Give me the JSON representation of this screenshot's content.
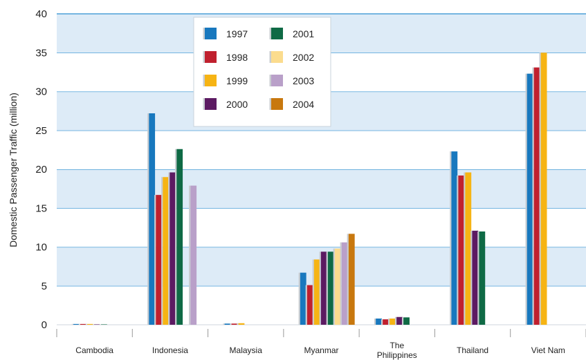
{
  "chart_data": {
    "type": "bar",
    "title": "",
    "xlabel": "",
    "ylabel": "Domestic Passenger Traffic (million)",
    "ylim": [
      0,
      40
    ],
    "yticks": [
      0,
      5,
      10,
      15,
      20,
      25,
      30,
      35,
      40
    ],
    "grid": "alternating horizontal bands",
    "legend_position": "top-left",
    "categories": [
      [
        "Cambodia"
      ],
      [
        "Indonesia"
      ],
      [
        "Malaysia"
      ],
      [
        "Myanmar"
      ],
      [
        "The",
        "Philippines"
      ],
      [
        "Thailand"
      ],
      [
        "Viet Nam"
      ]
    ],
    "series": [
      {
        "name": "1997",
        "color": "#1878be",
        "values": [
          0.1,
          27.2,
          0.15,
          6.7,
          0.8,
          22.3,
          32.3
        ]
      },
      {
        "name": "1998",
        "color": "#c0202e",
        "values": [
          0.1,
          16.7,
          0.15,
          5.1,
          0.7,
          19.2,
          33.1
        ]
      },
      {
        "name": "1999",
        "color": "#f6b414",
        "values": [
          0.1,
          19.0,
          0.2,
          8.4,
          0.8,
          19.6,
          35.0
        ]
      },
      {
        "name": "2000",
        "color": "#5c1a62",
        "values": [
          0.05,
          19.6,
          0,
          9.4,
          1.0,
          12.1,
          0
        ]
      },
      {
        "name": "2001",
        "color": "#0f6a45",
        "values": [
          0.05,
          22.6,
          0,
          9.4,
          0.95,
          12.0,
          0
        ]
      },
      {
        "name": "2002",
        "color": "#fbdc8e",
        "values": [
          0,
          0,
          0,
          9.8,
          0,
          0,
          0
        ]
      },
      {
        "name": "2003",
        "color": "#b9a0c9",
        "values": [
          0,
          17.9,
          0,
          10.6,
          0,
          0,
          0
        ]
      },
      {
        "name": "2004",
        "color": "#c8780e",
        "values": [
          0,
          0,
          0,
          11.7,
          0,
          0,
          0
        ]
      }
    ],
    "band_color": "#ddebf7"
  }
}
